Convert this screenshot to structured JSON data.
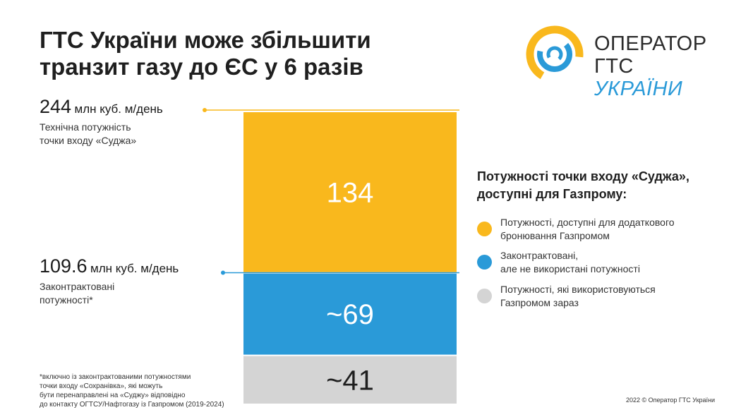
{
  "title": {
    "line1": "ГТС України може збільшити",
    "line2": "транзит газу до ЄС у 6 разів"
  },
  "logo": {
    "line1": "ОПЕРАТОР",
    "line2a": "ГТС ",
    "line2b": "УКРАЇНИ",
    "colors": {
      "yellow": "#f9b81d",
      "blue": "#2a9ad8"
    }
  },
  "annotations": {
    "top": {
      "value": "244",
      "unit": "млн куб. м/день",
      "desc1": "Технічна потужність",
      "desc2": "точки входу «Суджа»"
    },
    "mid": {
      "value": "109.6",
      "unit": "млн куб. м/день",
      "desc1": "Законтрактовані",
      "desc2": "потужності*"
    }
  },
  "legend": {
    "title1": "Потужності точки входу «Суджа»,",
    "title2": "доступні для Газпрому:",
    "items": [
      {
        "line1": "Потужності, доступні для додаткового",
        "line2": "бронювання Газпромом",
        "color": "#f9b81d"
      },
      {
        "line1": "Законтрактовані,",
        "line2": "але не використані потужності",
        "color": "#2a9ad8"
      },
      {
        "line1": "Потужності, які використовуються",
        "line2": "Газпромом зараз",
        "color": "#d4d4d4"
      }
    ]
  },
  "footnote": {
    "line1": "*включно із законтрактованими потужностями",
    "line2": "точки входу «Сохранівка», які можуть",
    "line3": "бути перенаправлені на «Суджу» відповідно",
    "line4": "до контакту ОГТСУ/Нафтогазу  із Газпромом (2019-2024)"
  },
  "copyright": "2022 © Оператор ГТС України",
  "chart_data": {
    "type": "bar",
    "stacked": true,
    "categories": [
      "Суджа"
    ],
    "series": [
      {
        "name": "Потужності, які використовуються Газпромом зараз",
        "values": [
          41
        ],
        "label": "~41",
        "color": "#d4d4d4"
      },
      {
        "name": "Законтрактовані, але не використані потужності",
        "values": [
          69
        ],
        "label": "~69",
        "color": "#2a9ad8"
      },
      {
        "name": "Потужності, доступні для додаткового бронювання Газпромом",
        "values": [
          134
        ],
        "label": "134",
        "color": "#f9b81d"
      }
    ],
    "reference_lines": [
      244,
      109.6
    ],
    "ylim": [
      0,
      244
    ]
  }
}
